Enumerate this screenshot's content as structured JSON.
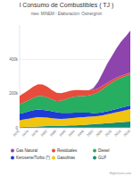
{
  "chart_data": {
    "type": "area",
    "stacked": true,
    "grid": true,
    "title": "l Consumo de Combustibles ( TJ )",
    "subtitle": "ntes: MINEM - Elaboración: Osinergmin",
    "credits": "Highcharts.com",
    "x": [
      1970,
      1972,
      1974,
      1976,
      1978,
      1980,
      1982,
      1984,
      1986,
      1988,
      1990,
      1992,
      1994,
      1996,
      1998,
      2000,
      2002,
      2004,
      2006,
      2008,
      2010,
      2012,
      2014,
      2016,
      2018
    ],
    "xlim": [
      1970,
      2018
    ],
    "xticks": [
      1970,
      1974,
      1978,
      1982,
      1986,
      1990,
      1994,
      1998,
      2002,
      2006,
      2010,
      2014,
      2018
    ],
    "ylim": [
      0,
      600000
    ],
    "yticks": [
      0,
      {
        "value": 200000,
        "label": "200k"
      },
      {
        "value": 400000,
        "label": "400k"
      }
    ],
    "legend": "bottom",
    "series": [
      {
        "name": "Gas Natural",
        "color": "#8e44ad",
        "values": [
          0,
          0,
          0,
          0,
          0,
          0,
          0,
          0,
          0,
          0,
          0,
          0,
          0,
          0,
          0,
          0,
          10000,
          40000,
          75000,
          110000,
          140000,
          170000,
          200000,
          220000,
          245000
        ]
      },
      {
        "name": "Residuales",
        "color": "#e74c3c",
        "values": [
          50000,
          55000,
          60000,
          66000,
          70000,
          68000,
          62000,
          55000,
          48000,
          44000,
          42000,
          40000,
          38000,
          36000,
          34000,
          30000,
          26000,
          22000,
          20000,
          18000,
          16000,
          14000,
          12000,
          11000,
          10000
        ]
      },
      {
        "name": "Diesel",
        "color": "#27ae60",
        "values": [
          55000,
          60000,
          66000,
          72000,
          78000,
          80000,
          76000,
          70000,
          66000,
          70000,
          80000,
          88000,
          94000,
          96000,
          96000,
          100000,
          110000,
          120000,
          135000,
          150000,
          160000,
          170000,
          175000,
          178000,
          182000
        ]
      },
      {
        "name": "Kerosene/Turbo (*)",
        "color": "#1f3bd6",
        "values": [
          38000,
          40000,
          42000,
          44000,
          45000,
          44000,
          42000,
          40000,
          38000,
          36000,
          34000,
          32000,
          30000,
          28000,
          26000,
          24000,
          20000,
          18000,
          18000,
          17000,
          18000,
          19000,
          20000,
          21000,
          22000
        ]
      },
      {
        "name": "Gasolinas",
        "color": "#f1c40f",
        "values": [
          40000,
          44000,
          48000,
          52000,
          54000,
          52000,
          50000,
          46000,
          42000,
          40000,
          40000,
          42000,
          44000,
          45000,
          46000,
          46000,
          45000,
          46000,
          48000,
          52000,
          56000,
          60000,
          64000,
          68000,
          72000
        ]
      },
      {
        "name": "GLP",
        "color": "#138d75",
        "values": [
          4000,
          5000,
          6000,
          7000,
          8000,
          9000,
          10000,
          10000,
          11000,
          12000,
          13000,
          14000,
          15000,
          16000,
          17000,
          19000,
          21000,
          23000,
          25000,
          27000,
          29000,
          31000,
          33000,
          35000,
          37000
        ]
      }
    ]
  }
}
